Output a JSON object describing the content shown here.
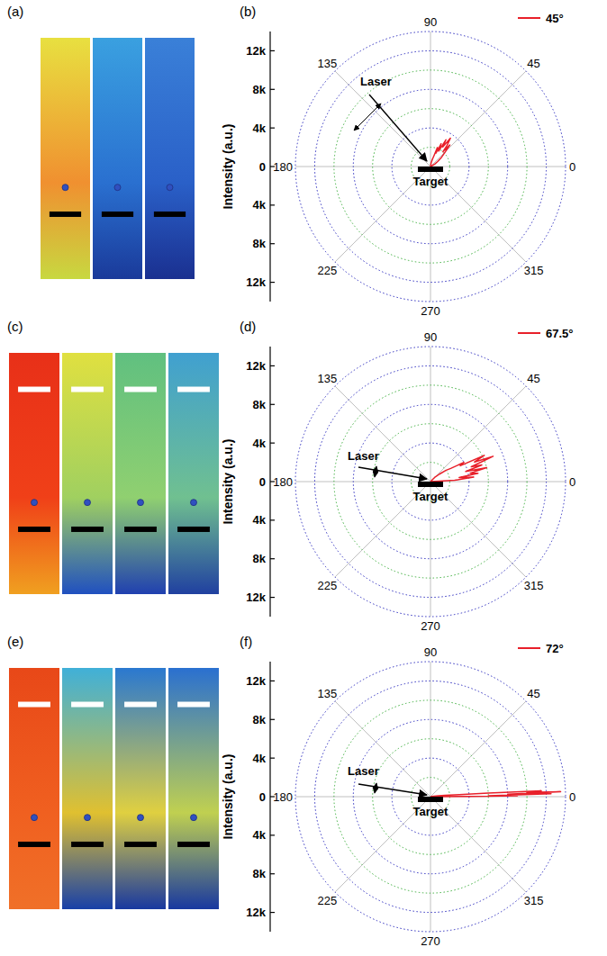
{
  "chart_data": [
    {
      "type": "polar",
      "panel_label": "(b)",
      "ylabel": "Intensity (a.u.)",
      "annotations": [
        "Laser",
        "Target"
      ],
      "xlim": [
        0,
        360
      ],
      "xticks": [
        0,
        45,
        90,
        135,
        180,
        225,
        270,
        315
      ],
      "ylim": [
        0,
        14000
      ],
      "yticks": [
        0,
        {
          "value": 4000,
          "label": "4k"
        },
        {
          "value": 8000,
          "label": "8k"
        },
        {
          "value": 12000,
          "label": "12k"
        }
      ],
      "grid": true,
      "legend": "upper right",
      "series": [
        {
          "name": "45°",
          "color": "#e8202a",
          "x": [
            20,
            30,
            35,
            40,
            45,
            48,
            50,
            52,
            55,
            58,
            60,
            62,
            65,
            68,
            70,
            72,
            75,
            80,
            90
          ],
          "values": [
            0,
            500,
            900,
            1500,
            2200,
            3000,
            2000,
            2800,
            3600,
            2400,
            3200,
            1800,
            2600,
            1500,
            2100,
            1200,
            800,
            400,
            0
          ]
        }
      ]
    },
    {
      "type": "polar",
      "panel_label": "(d)",
      "ylabel": "Intensity (a.u.)",
      "annotations": [
        "Laser",
        "Target"
      ],
      "xlim": [
        0,
        360
      ],
      "xticks": [
        0,
        45,
        90,
        135,
        180,
        225,
        270,
        315
      ],
      "ylim": [
        0,
        14000
      ],
      "yticks": [
        0,
        {
          "value": 4000,
          "label": "4k"
        },
        {
          "value": 8000,
          "label": "8k"
        },
        {
          "value": 12000,
          "label": "12k"
        }
      ],
      "grid": true,
      "legend": "upper right",
      "series": [
        {
          "name": "67.5°",
          "color": "#e8202a",
          "x": [
            0,
            3,
            6,
            8,
            10,
            12,
            14,
            16,
            18,
            20,
            22,
            24,
            26,
            28,
            30,
            33,
            36,
            40,
            45,
            50
          ],
          "values": [
            0,
            2500,
            4500,
            3000,
            5000,
            4200,
            6000,
            3800,
            5600,
            4500,
            7000,
            5000,
            6200,
            3500,
            4000,
            2500,
            2000,
            1200,
            600,
            0
          ]
        }
      ]
    },
    {
      "type": "polar",
      "panel_label": "(f)",
      "ylabel": "Intensity (a.u.)",
      "annotations": [
        "Laser",
        "Target"
      ],
      "xlim": [
        0,
        360
      ],
      "xticks": [
        0,
        45,
        90,
        135,
        180,
        225,
        270,
        315
      ],
      "ylim": [
        0,
        14000
      ],
      "yticks": [
        0,
        {
          "value": 4000,
          "label": "4k"
        },
        {
          "value": 8000,
          "label": "8k"
        },
        {
          "value": 12000,
          "label": "12k"
        }
      ],
      "grid": true,
      "legend": "upper right",
      "series": [
        {
          "name": "72°",
          "color": "#e8202a",
          "x": [
            0,
            0.3,
            0.6,
            1,
            1.4,
            1.8,
            2.2,
            2.6,
            3,
            3.5,
            4,
            5,
            7,
            10,
            15
          ],
          "values": [
            0,
            4000,
            9000,
            6000,
            12500,
            8000,
            13500,
            10000,
            11500,
            6000,
            3000,
            1500,
            800,
            300,
            0
          ]
        }
      ]
    }
  ],
  "images": [
    {
      "panel_label": "(a)",
      "colors": [
        "#000000"
      ],
      "strips": [
        {
          "colors": [
            "#e8e040",
            "#f09030",
            "#c8d840"
          ]
        },
        {
          "colors": [
            "#3aa0e0",
            "#2a70d0",
            "#1a3a9a"
          ]
        },
        {
          "colors": [
            "#3a80d8",
            "#2a60c8",
            "#1a3090"
          ]
        }
      ]
    },
    {
      "panel_label": "(c)",
      "colors": [
        "#ffffff",
        "#000000"
      ],
      "strips": [
        {
          "colors": [
            "#e83018",
            "#f04018",
            "#f0a020"
          ]
        },
        {
          "colors": [
            "#e0e040",
            "#a0d060",
            "#2050c0"
          ]
        },
        {
          "colors": [
            "#60c080",
            "#90d070",
            "#2040b0"
          ]
        },
        {
          "colors": [
            "#40a0d0",
            "#70c090",
            "#2040a0"
          ]
        }
      ]
    },
    {
      "panel_label": "(e)",
      "colors": [
        "#ffffff",
        "#000000"
      ],
      "strips": [
        {
          "colors": [
            "#e84818",
            "#f06020",
            "#f07028"
          ]
        },
        {
          "colors": [
            "#40b0d8",
            "#e0c030",
            "#1840a8"
          ]
        },
        {
          "colors": [
            "#2a78d0",
            "#e0d040",
            "#1838a0"
          ]
        },
        {
          "colors": [
            "#2a70d0",
            "#c0d050",
            "#1838a0"
          ]
        }
      ]
    }
  ]
}
